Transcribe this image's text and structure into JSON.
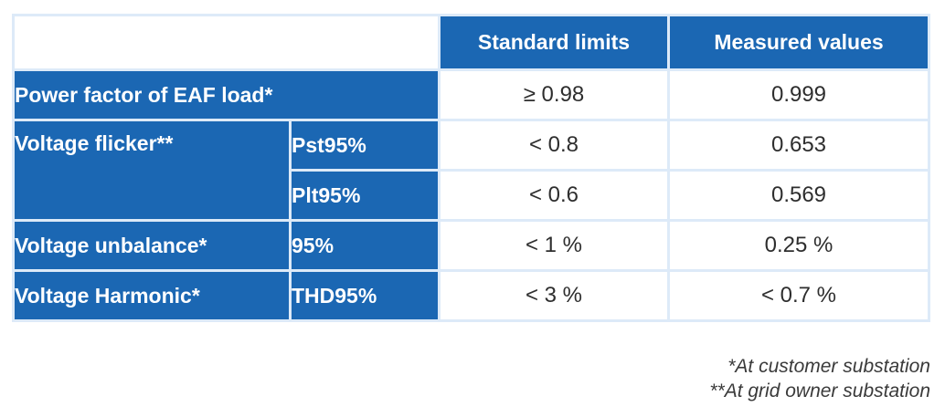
{
  "colors": {
    "blue": "#1b67b3",
    "border": "#ddeaf8",
    "text_dark": "#2e2e2e"
  },
  "table": {
    "headers": {
      "standard": "Standard limits",
      "measured": "Measured values"
    },
    "rows": [
      {
        "label": "Power factor of EAF load*",
        "sub": "",
        "standard": "≥ 0.98",
        "measured": "0.999"
      },
      {
        "label": "Voltage flicker**",
        "sub": "Pst95%",
        "standard": "< 0.8",
        "measured": "0.653"
      },
      {
        "label": "",
        "sub": "Plt95%",
        "standard": "< 0.6",
        "measured": "0.569"
      },
      {
        "label": "Voltage unbalance*",
        "sub": "95%",
        "standard": "< 1 %",
        "measured": "0.25 %"
      },
      {
        "label": "Voltage Harmonic*",
        "sub": "THD95%",
        "standard": "< 3 %",
        "measured": "< 0.7 %"
      }
    ],
    "footnotes": [
      "*At customer substation",
      "**At grid owner substation"
    ]
  }
}
